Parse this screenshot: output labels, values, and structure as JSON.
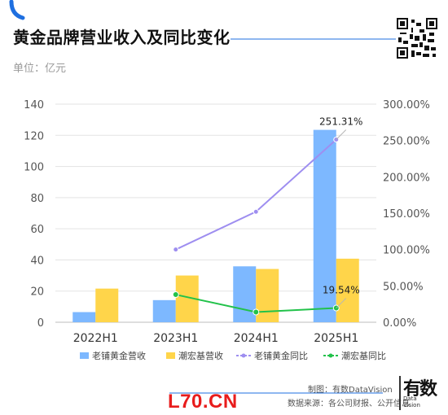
{
  "title": "黄金品牌营业收入及同比变化",
  "unit_label": "单位：亿元",
  "credit_maker": "制图：有数DataVision",
  "credit_source": "数据来源：各公司财报、公开信息",
  "watermark": "L70.CN",
  "brand": {
    "logo_char": "有数",
    "sub1": "Data",
    "sub2": "Vision"
  },
  "colors": {
    "accent": "#1e6fe0",
    "series1": "#7db8ff",
    "series2": "#ffd54a",
    "line1": "#9e8ef0",
    "line2": "#22c24a"
  },
  "chart_data": {
    "type": "bar",
    "categories": [
      "2022H1",
      "2023H1",
      "2024H1",
      "2025H1"
    ],
    "ylim": [
      0,
      140
    ],
    "yticks": [
      "0",
      "20",
      "40",
      "60",
      "80",
      "100",
      "120",
      "140"
    ],
    "y2lim": [
      0,
      300
    ],
    "y2ticks": [
      "0.00%",
      "50.00%",
      "100.00%",
      "150.00%",
      "200.00%",
      "250.00%",
      "300.00%"
    ],
    "series": [
      {
        "name": "老铺黄金营收",
        "kind": "bar",
        "axis": "left",
        "values": [
          6.5,
          14.2,
          35.9,
          123.5
        ]
      },
      {
        "name": "潮宏基营收",
        "kind": "bar",
        "axis": "left",
        "values": [
          21.6,
          30.0,
          34.2,
          40.8
        ]
      },
      {
        "name": "老铺黄金同比",
        "kind": "line",
        "axis": "right",
        "values": [
          null,
          100.0,
          152.0,
          251.31
        ]
      },
      {
        "name": "潮宏基同比",
        "kind": "line",
        "axis": "right",
        "values": [
          null,
          38.0,
          14.0,
          19.54
        ]
      }
    ],
    "annotations": [
      {
        "text": "251.31%",
        "series": 2,
        "index": 3
      },
      {
        "text": "19.54%",
        "series": 3,
        "index": 3
      }
    ],
    "legend": "bottom"
  }
}
